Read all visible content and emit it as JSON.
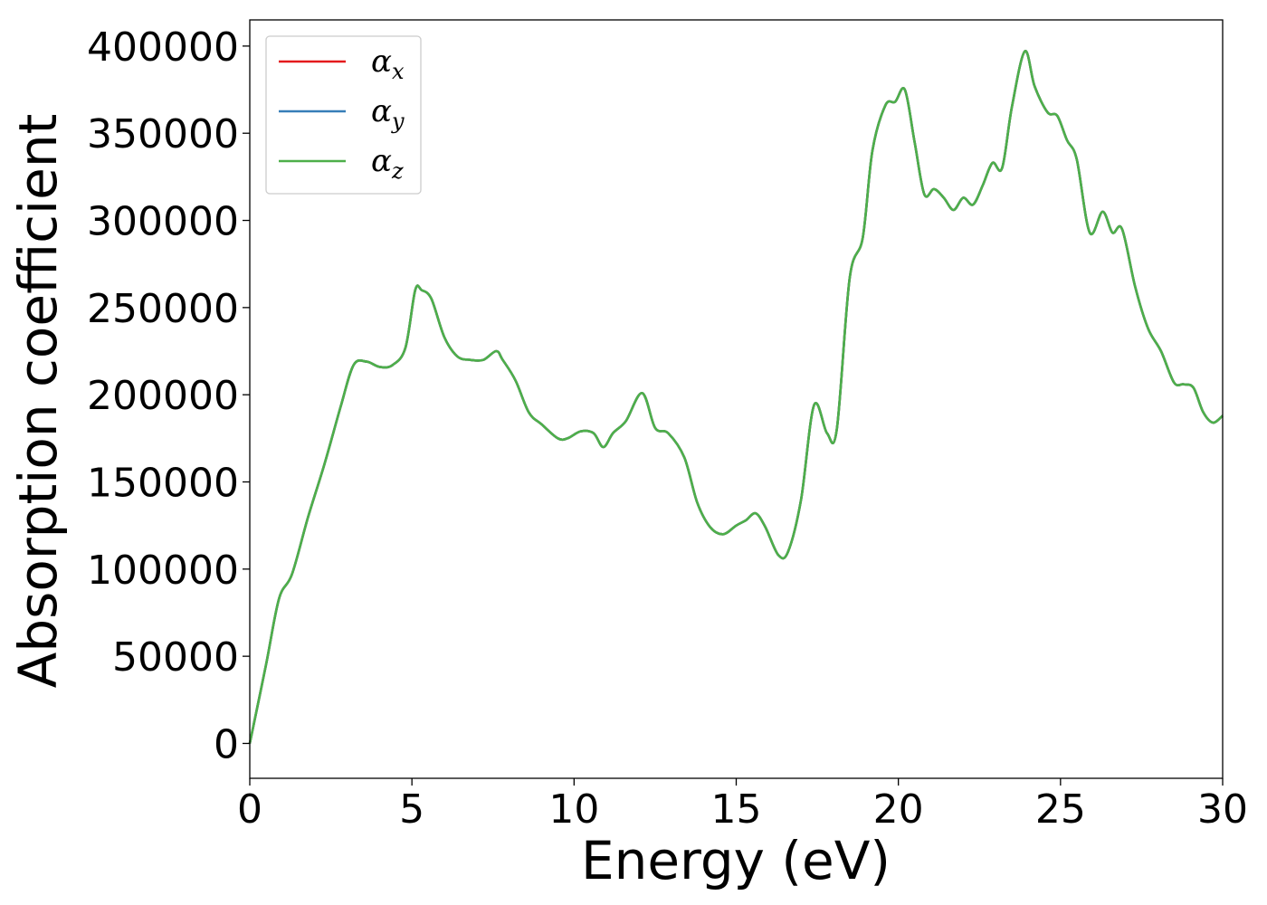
{
  "chart_data": {
    "type": "line",
    "xlabel": "Energy (eV)",
    "ylabel": "Absorption coefficient",
    "xlim": [
      0,
      30
    ],
    "ylim": [
      -20000,
      415000
    ],
    "xticks": [
      "0",
      "5",
      "10",
      "15",
      "20",
      "25",
      "30"
    ],
    "yticks": [
      "0",
      "50000",
      "100000",
      "150000",
      "200000",
      "250000",
      "300000",
      "350000",
      "400000"
    ],
    "grid": false,
    "legend_position": "top-left",
    "series": [
      {
        "name_symbol": "α",
        "name_subscript": "x",
        "color": "#e41a1c",
        "x": [
          0,
          0.5,
          0.9,
          1.3,
          1.8,
          2.3,
          2.8,
          3.2,
          3.6,
          4.0,
          4.4,
          4.8,
          5.1,
          5.3,
          5.6,
          6.0,
          6.4,
          6.8,
          7.2,
          7.6,
          7.8,
          8.2,
          8.6,
          9.0,
          9.5,
          9.8,
          10.2,
          10.6,
          10.9,
          11.2,
          11.6,
          12.1,
          12.5,
          12.9,
          13.4,
          13.8,
          14.2,
          14.6,
          15.0,
          15.3,
          15.6,
          15.9,
          16.3,
          16.6,
          17.0,
          17.4,
          17.8,
          18.1,
          18.5,
          18.9,
          19.2,
          19.6,
          19.9,
          20.2,
          20.5,
          20.8,
          21.1,
          21.4,
          21.7,
          22.0,
          22.3,
          22.6,
          22.9,
          23.2,
          23.5,
          23.9,
          24.2,
          24.6,
          24.9,
          25.2,
          25.5,
          25.9,
          26.3,
          26.6,
          26.9,
          27.3,
          27.7,
          28.1,
          28.5,
          28.8,
          29.1,
          29.4,
          29.7,
          30.0
        ],
        "y": [
          0,
          45000,
          83000,
          97000,
          130000,
          160000,
          193000,
          217000,
          219000,
          216000,
          217000,
          227000,
          260000,
          260000,
          255000,
          233000,
          222000,
          220000,
          220000,
          225000,
          220000,
          208000,
          190000,
          183000,
          175000,
          175000,
          179000,
          178000,
          170000,
          178000,
          185000,
          201000,
          181000,
          178000,
          164000,
          138000,
          124000,
          120000,
          125000,
          128000,
          132000,
          124000,
          108000,
          110000,
          140000,
          194000,
          178000,
          180000,
          267000,
          290000,
          340000,
          366000,
          368000,
          375000,
          345000,
          315000,
          318000,
          313000,
          306000,
          313000,
          309000,
          320000,
          333000,
          330000,
          365000,
          397000,
          377000,
          362000,
          360000,
          346000,
          335000,
          293000,
          305000,
          293000,
          295000,
          262000,
          238000,
          225000,
          207000,
          206000,
          204000,
          190000,
          184000,
          188000
        ]
      },
      {
        "name_symbol": "α",
        "name_subscript": "y",
        "color": "#377eb8",
        "x": [
          0,
          0.5,
          0.9,
          1.3,
          1.8,
          2.3,
          2.8,
          3.2,
          3.6,
          4.0,
          4.4,
          4.8,
          5.1,
          5.3,
          5.6,
          6.0,
          6.4,
          6.8,
          7.2,
          7.6,
          7.8,
          8.2,
          8.6,
          9.0,
          9.5,
          9.8,
          10.2,
          10.6,
          10.9,
          11.2,
          11.6,
          12.1,
          12.5,
          12.9,
          13.4,
          13.8,
          14.2,
          14.6,
          15.0,
          15.3,
          15.6,
          15.9,
          16.3,
          16.6,
          17.0,
          17.4,
          17.8,
          18.1,
          18.5,
          18.9,
          19.2,
          19.6,
          19.9,
          20.2,
          20.5,
          20.8,
          21.1,
          21.4,
          21.7,
          22.0,
          22.3,
          22.6,
          22.9,
          23.2,
          23.5,
          23.9,
          24.2,
          24.6,
          24.9,
          25.2,
          25.5,
          25.9,
          26.3,
          26.6,
          26.9,
          27.3,
          27.7,
          28.1,
          28.5,
          28.8,
          29.1,
          29.4,
          29.7,
          30.0
        ],
        "y": [
          0,
          45000,
          83000,
          97000,
          130000,
          160000,
          193000,
          217000,
          219000,
          216000,
          217000,
          227000,
          260000,
          260000,
          255000,
          233000,
          222000,
          220000,
          220000,
          225000,
          220000,
          208000,
          190000,
          183000,
          175000,
          175000,
          179000,
          178000,
          170000,
          178000,
          185000,
          201000,
          181000,
          178000,
          164000,
          138000,
          124000,
          120000,
          125000,
          128000,
          132000,
          124000,
          108000,
          110000,
          140000,
          194000,
          178000,
          180000,
          267000,
          290000,
          340000,
          366000,
          368000,
          375000,
          345000,
          315000,
          318000,
          313000,
          306000,
          313000,
          309000,
          320000,
          333000,
          330000,
          365000,
          397000,
          377000,
          362000,
          360000,
          346000,
          335000,
          293000,
          305000,
          293000,
          295000,
          262000,
          238000,
          225000,
          207000,
          206000,
          204000,
          190000,
          184000,
          188000
        ]
      },
      {
        "name_symbol": "α",
        "name_subscript": "z",
        "color": "#4daf4a",
        "x": [
          0,
          0.5,
          0.9,
          1.3,
          1.8,
          2.3,
          2.8,
          3.2,
          3.6,
          4.0,
          4.4,
          4.8,
          5.1,
          5.3,
          5.6,
          6.0,
          6.4,
          6.8,
          7.2,
          7.6,
          7.8,
          8.2,
          8.6,
          9.0,
          9.5,
          9.8,
          10.2,
          10.6,
          10.9,
          11.2,
          11.6,
          12.1,
          12.5,
          12.9,
          13.4,
          13.8,
          14.2,
          14.6,
          15.0,
          15.3,
          15.6,
          15.9,
          16.3,
          16.6,
          17.0,
          17.4,
          17.8,
          18.1,
          18.5,
          18.9,
          19.2,
          19.6,
          19.9,
          20.2,
          20.5,
          20.8,
          21.1,
          21.4,
          21.7,
          22.0,
          22.3,
          22.6,
          22.9,
          23.2,
          23.5,
          23.9,
          24.2,
          24.6,
          24.9,
          25.2,
          25.5,
          25.9,
          26.3,
          26.6,
          26.9,
          27.3,
          27.7,
          28.1,
          28.5,
          28.8,
          29.1,
          29.4,
          29.7,
          30.0
        ],
        "y": [
          0,
          45000,
          83000,
          97000,
          130000,
          160000,
          193000,
          217000,
          219000,
          216000,
          217000,
          227000,
          260000,
          260000,
          255000,
          233000,
          222000,
          220000,
          220000,
          225000,
          220000,
          208000,
          190000,
          183000,
          175000,
          175000,
          179000,
          178000,
          170000,
          178000,
          185000,
          201000,
          181000,
          178000,
          164000,
          138000,
          124000,
          120000,
          125000,
          128000,
          132000,
          124000,
          108000,
          110000,
          140000,
          194000,
          178000,
          180000,
          267000,
          290000,
          340000,
          366000,
          368000,
          375000,
          345000,
          315000,
          318000,
          313000,
          306000,
          313000,
          309000,
          320000,
          333000,
          330000,
          365000,
          397000,
          377000,
          362000,
          360000,
          346000,
          335000,
          293000,
          305000,
          293000,
          295000,
          262000,
          238000,
          225000,
          207000,
          206000,
          204000,
          190000,
          184000,
          188000
        ]
      }
    ]
  }
}
